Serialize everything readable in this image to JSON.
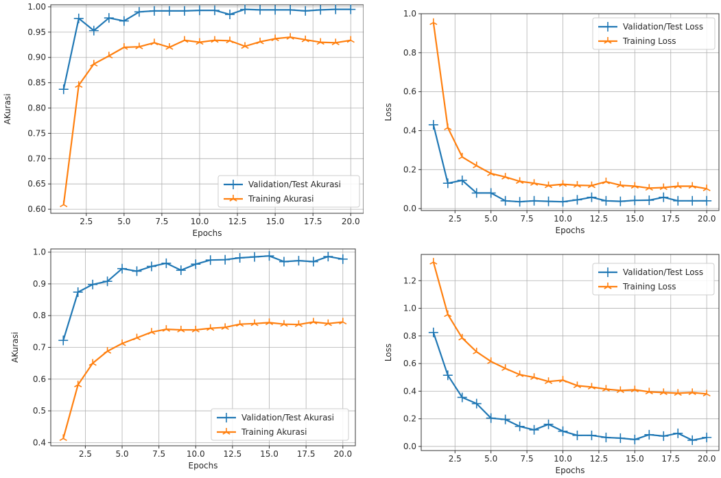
{
  "colors": {
    "validation": "#1f77b4",
    "training": "#ff7f0e",
    "grid": "#b0b0b0"
  },
  "chart_data": [
    {
      "type": "line",
      "xlabel": "Epochs",
      "ylabel": "AKurasi",
      "xlim": [
        0.15,
        20.85
      ],
      "ylim": [
        0.592,
        1.004
      ],
      "xticks": [
        2.5,
        5.0,
        7.5,
        10.0,
        12.5,
        15.0,
        17.5,
        20.0
      ],
      "xtick_labels": [
        "2.5",
        "5.0",
        "7.5",
        "10.0",
        "12.5",
        "15.0",
        "17.5",
        "20.0"
      ],
      "yticks": [
        0.6,
        0.65,
        0.7,
        0.75,
        0.8,
        0.85,
        0.9,
        0.95,
        1.0
      ],
      "ytick_labels": [
        "0.60",
        "0.65",
        "0.70",
        "0.75",
        "0.80",
        "0.85",
        "0.90",
        "0.95",
        "1.00"
      ],
      "grid": true,
      "legend_position": "bottom-right",
      "x": [
        1,
        2,
        3,
        4,
        5,
        6,
        7,
        8,
        9,
        10,
        11,
        12,
        13,
        14,
        15,
        16,
        17,
        18,
        19,
        20
      ],
      "series": [
        {
          "name": "Validation/Test Akurasi",
          "color_key": "validation",
          "values": [
            0.837,
            0.977,
            0.953,
            0.978,
            0.972,
            0.99,
            0.992,
            0.992,
            0.992,
            0.993,
            0.993,
            0.985,
            0.995,
            0.994,
            0.994,
            0.994,
            0.992,
            0.994,
            0.995,
            0.995
          ]
        },
        {
          "name": "Training Akurasi",
          "color_key": "training",
          "values": [
            0.609,
            0.845,
            0.887,
            0.903,
            0.92,
            0.921,
            0.929,
            0.92,
            0.934,
            0.93,
            0.934,
            0.933,
            0.922,
            0.931,
            0.937,
            0.94,
            0.935,
            0.93,
            0.929,
            0.934
          ]
        }
      ]
    },
    {
      "type": "line",
      "xlabel": "Epochs",
      "ylabel": "Loss",
      "xlim": [
        0.15,
        20.85
      ],
      "ylim": [
        -0.01,
        1.0
      ],
      "xticks": [
        2.5,
        5.0,
        7.5,
        10.0,
        12.5,
        15.0,
        17.5,
        20.0
      ],
      "xtick_labels": [
        "2.5",
        "5.0",
        "7.5",
        "10.0",
        "12.5",
        "15.0",
        "17.5",
        "20.0"
      ],
      "yticks": [
        0.0,
        0.2,
        0.4,
        0.6,
        0.8,
        1.0
      ],
      "ytick_labels": [
        "0.0",
        "0.2",
        "0.4",
        "0.6",
        "0.8",
        "1.0"
      ],
      "grid": true,
      "legend_position": "top-right",
      "x": [
        1,
        2,
        3,
        4,
        5,
        6,
        7,
        8,
        9,
        10,
        11,
        12,
        13,
        14,
        15,
        16,
        17,
        18,
        19,
        20
      ],
      "series": [
        {
          "name": "Validation/Test Loss",
          "color_key": "validation",
          "values": [
            0.43,
            0.13,
            0.145,
            0.08,
            0.08,
            0.04,
            0.035,
            0.04,
            0.037,
            0.035,
            0.045,
            0.058,
            0.04,
            0.037,
            0.042,
            0.043,
            0.058,
            0.04,
            0.04,
            0.04
          ]
        },
        {
          "name": "Training Loss",
          "color_key": "training",
          "values": [
            0.955,
            0.415,
            0.265,
            0.22,
            0.18,
            0.162,
            0.14,
            0.13,
            0.118,
            0.125,
            0.12,
            0.118,
            0.138,
            0.12,
            0.115,
            0.105,
            0.108,
            0.115,
            0.115,
            0.102
          ]
        }
      ]
    },
    {
      "type": "line",
      "xlabel": "Epochs",
      "ylabel": "AKurasi",
      "xlim": [
        0.15,
        20.85
      ],
      "ylim": [
        0.39,
        1.01
      ],
      "xticks": [
        2.5,
        5.0,
        7.5,
        10.0,
        12.5,
        15.0,
        17.5,
        20.0
      ],
      "xtick_labels": [
        "2.5",
        "5.0",
        "7.5",
        "10.0",
        "12.5",
        "15.0",
        "17.5",
        "20.0"
      ],
      "yticks": [
        0.4,
        0.5,
        0.6,
        0.7,
        0.8,
        0.9,
        1.0
      ],
      "ytick_labels": [
        "0.4",
        "0.5",
        "0.6",
        "0.7",
        "0.8",
        "0.9",
        "1.0"
      ],
      "grid": true,
      "legend_position": "bottom-right",
      "x": [
        1,
        2,
        3,
        4,
        5,
        6,
        7,
        8,
        9,
        10,
        11,
        12,
        13,
        14,
        15,
        16,
        17,
        18,
        19,
        20
      ],
      "series": [
        {
          "name": "Validation/Test Akurasi",
          "color_key": "validation",
          "values": [
            0.722,
            0.874,
            0.898,
            0.908,
            0.948,
            0.94,
            0.955,
            0.965,
            0.943,
            0.962,
            0.975,
            0.976,
            0.982,
            0.985,
            0.988,
            0.97,
            0.973,
            0.97,
            0.986,
            0.978
          ]
        },
        {
          "name": "Training Akurasi",
          "color_key": "training",
          "values": [
            0.413,
            0.582,
            0.65,
            0.688,
            0.712,
            0.73,
            0.748,
            0.757,
            0.755,
            0.755,
            0.76,
            0.763,
            0.773,
            0.775,
            0.778,
            0.773,
            0.772,
            0.78,
            0.775,
            0.78
          ]
        }
      ]
    },
    {
      "type": "line",
      "xlabel": "Epochs",
      "ylabel": "Loss",
      "xlim": [
        0.15,
        20.85
      ],
      "ylim": [
        -0.03,
        1.39
      ],
      "xticks": [
        2.5,
        5.0,
        7.5,
        10.0,
        12.5,
        15.0,
        17.5,
        20.0
      ],
      "xtick_labels": [
        "2.5",
        "5.0",
        "7.5",
        "10.0",
        "12.5",
        "15.0",
        "17.5",
        "20.0"
      ],
      "yticks": [
        0.0,
        0.2,
        0.4,
        0.6,
        0.8,
        1.0,
        1.2
      ],
      "ytick_labels": [
        "0.0",
        "0.2",
        "0.4",
        "0.6",
        "0.8",
        "1.0",
        "1.2"
      ],
      "grid": true,
      "legend_position": "top-right",
      "x": [
        1,
        2,
        3,
        4,
        5,
        6,
        7,
        8,
        9,
        10,
        11,
        12,
        13,
        14,
        15,
        16,
        17,
        18,
        19,
        20
      ],
      "series": [
        {
          "name": "Validation/Test Loss",
          "color_key": "validation",
          "values": [
            0.825,
            0.515,
            0.355,
            0.31,
            0.205,
            0.195,
            0.145,
            0.12,
            0.16,
            0.11,
            0.08,
            0.08,
            0.065,
            0.06,
            0.05,
            0.085,
            0.075,
            0.095,
            0.045,
            0.065
          ]
        },
        {
          "name": "Training Loss",
          "color_key": "training",
          "values": [
            1.335,
            0.955,
            0.785,
            0.685,
            0.615,
            0.565,
            0.52,
            0.5,
            0.47,
            0.48,
            0.44,
            0.43,
            0.415,
            0.405,
            0.41,
            0.395,
            0.39,
            0.385,
            0.39,
            0.38
          ]
        }
      ]
    }
  ]
}
